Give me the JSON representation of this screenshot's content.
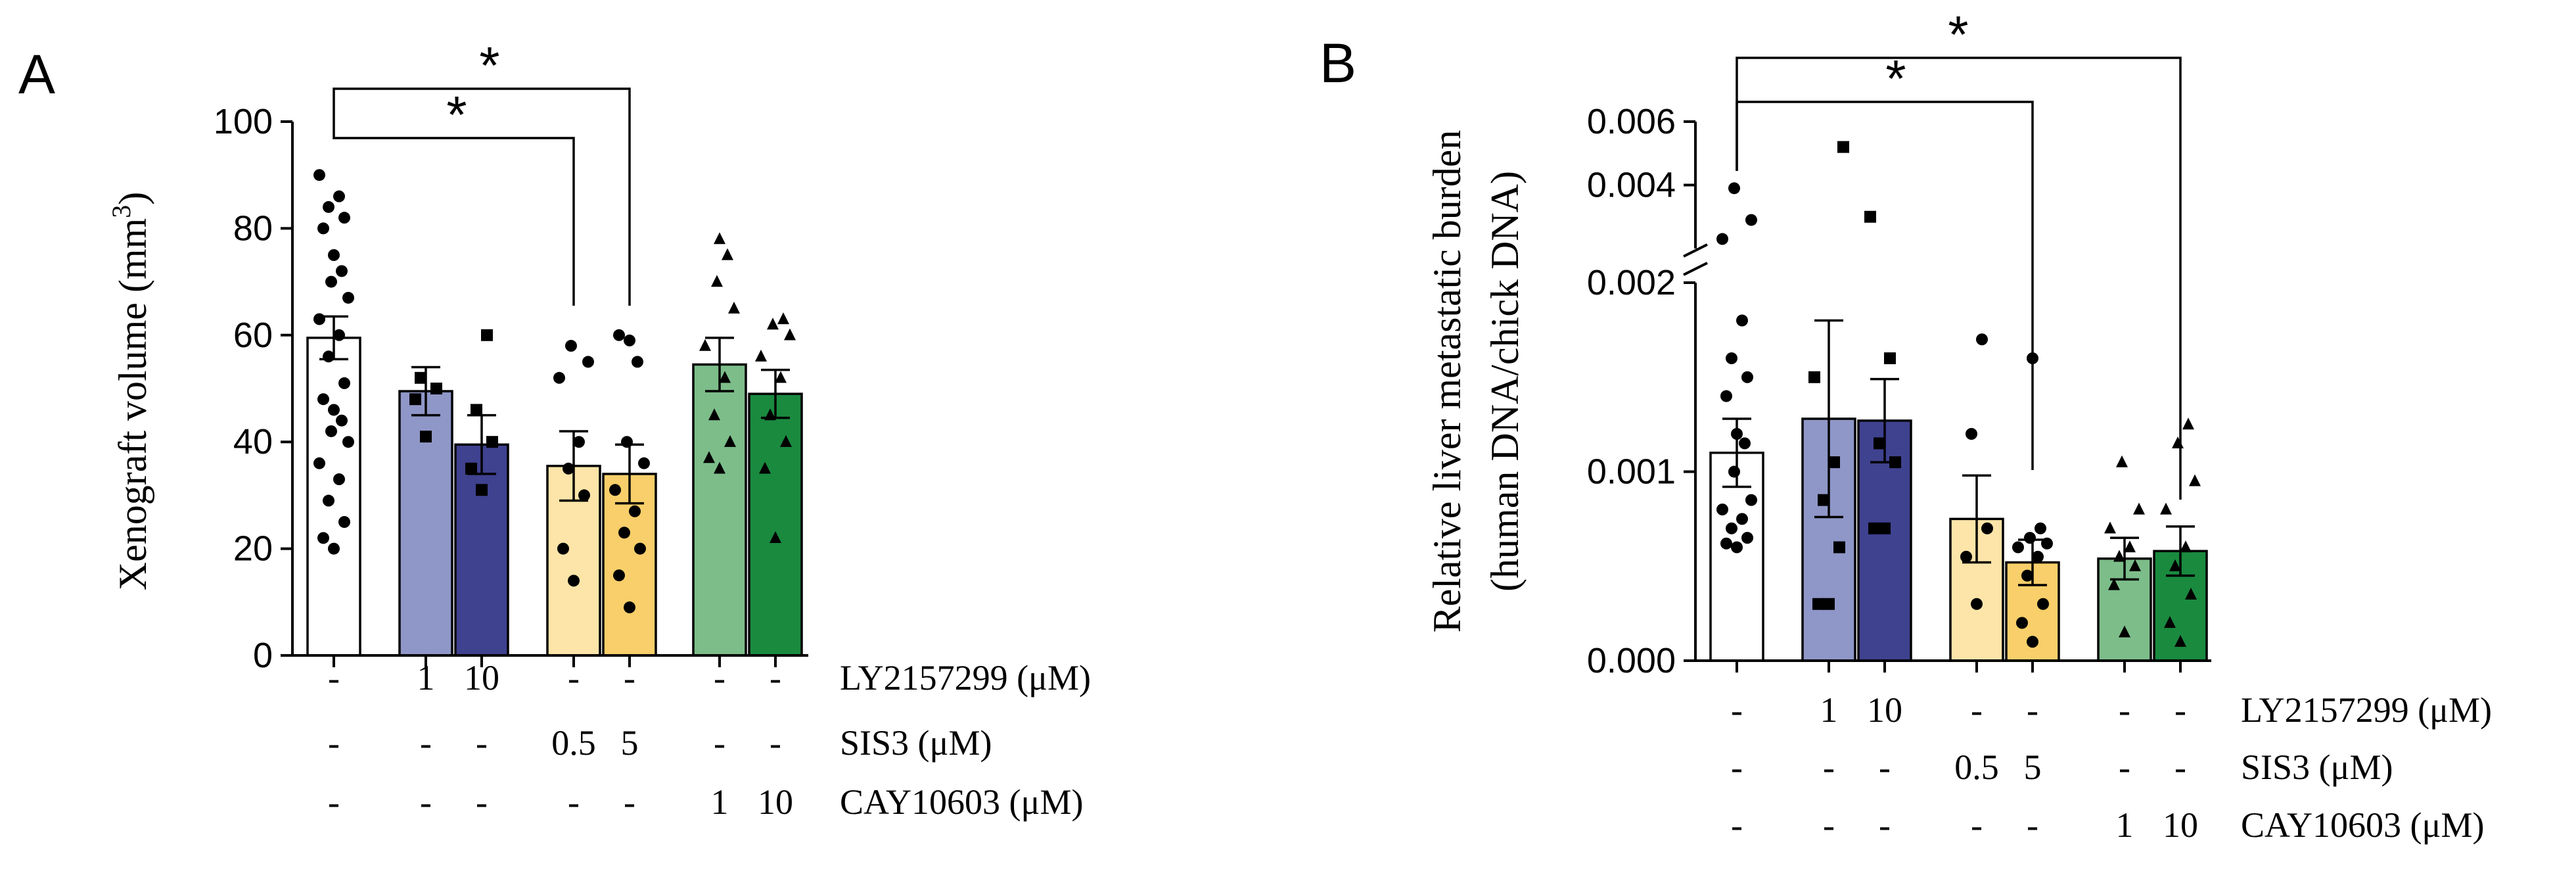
{
  "chart_data": [
    {
      "panel_label": "A",
      "type": "bar",
      "ylabel_main": "Xenograft volume (mm",
      "ylabel_sup": "3",
      "ylabel_end": ")",
      "ylim": [
        0,
        100
      ],
      "yticks": [
        "0",
        "20",
        "40",
        "60",
        "80",
        "100"
      ],
      "sig_marks": [
        "*",
        "*"
      ],
      "bars": [
        {
          "mean": 59.5,
          "sem": 4.0,
          "color": "#ffffff",
          "marker": "circle",
          "points": [
            20,
            22,
            25,
            29,
            33,
            36,
            40,
            42,
            44,
            46,
            48,
            51,
            56,
            60,
            63,
            67,
            70,
            72,
            75,
            80,
            82,
            84,
            86,
            90
          ]
        },
        {
          "mean": 49.5,
          "sem": 4.5,
          "color": "#8f97c8",
          "marker": "square",
          "points": [
            41,
            48,
            50,
            52
          ]
        },
        {
          "mean": 39.5,
          "sem": 5.5,
          "color": "#3f428f",
          "marker": "square",
          "points": [
            31,
            35,
            40,
            46,
            60
          ]
        },
        {
          "mean": 35.5,
          "sem": 6.5,
          "color": "#fde5a9",
          "marker": "circle",
          "points": [
            14,
            20,
            30,
            35,
            40,
            52,
            55,
            58
          ]
        },
        {
          "mean": 34.0,
          "sem": 5.5,
          "color": "#f8cf6a",
          "marker": "circle",
          "points": [
            9,
            15,
            20,
            23,
            27,
            31,
            36,
            40,
            55,
            59,
            60
          ]
        },
        {
          "mean": 54.5,
          "sem": 5.0,
          "color": "#7dbd8a",
          "marker": "triangle",
          "points": [
            35,
            37,
            40,
            45,
            52,
            58,
            65,
            70,
            75,
            78
          ]
        },
        {
          "mean": 49.0,
          "sem": 4.5,
          "color": "#1a8a3f",
          "marker": "triangle",
          "points": [
            22,
            35,
            40,
            45,
            52,
            56,
            60,
            62,
            63
          ]
        }
      ],
      "rows": [
        {
          "label": "LY2157299 (μM)",
          "values": [
            "-",
            "1",
            "10",
            "-",
            "-",
            "-",
            "-"
          ]
        },
        {
          "label": "SIS3 (μM)",
          "values": [
            "-",
            "-",
            "-",
            "0.5",
            "5",
            "-",
            "-"
          ]
        },
        {
          "label": "CAY10603 (μM)",
          "values": [
            "-",
            "-",
            "-",
            "-",
            "-",
            "1",
            "10"
          ]
        }
      ]
    },
    {
      "panel_label": "B",
      "type": "bar",
      "ylabel_line1": "Relative liver metastatic burden",
      "ylabel_line2": "(human DNA/chick DNA)",
      "ylim_lower": [
        0,
        0.002
      ],
      "ylim_upper": [
        0.002,
        0.006
      ],
      "yticks_lower": [
        "0.000",
        "0.001",
        "0.002"
      ],
      "yticks_upper": [
        "0.004",
        "0.006"
      ],
      "sig_marks": [
        "*",
        "*"
      ],
      "bars": [
        {
          "mean": 0.0011,
          "sem": 0.00018,
          "color": "#ffffff",
          "marker": "circle",
          "points": [
            0.0006,
            0.00062,
            0.00065,
            0.0007,
            0.00075,
            0.0008,
            0.00085,
            0.001,
            0.00115,
            0.0012,
            0.0014,
            0.0015,
            0.0016,
            0.0018,
            0.0023,
            0.0029,
            0.0039
          ]
        },
        {
          "mean": 0.00128,
          "sem": 0.00052,
          "color": "#8f97c8",
          "marker": "square",
          "points": [
            0.0003,
            0.0003,
            0.0006,
            0.00085,
            0.00105,
            0.0015,
            0.0052
          ]
        },
        {
          "mean": 0.00127,
          "sem": 0.00022,
          "color": "#3f428f",
          "marker": "square",
          "points": [
            0.0007,
            0.0007,
            0.00105,
            0.00115,
            0.0016,
            0.003
          ]
        },
        {
          "mean": 0.00075,
          "sem": 0.00023,
          "color": "#fde5a9",
          "marker": "circle",
          "points": [
            0.0003,
            0.00055,
            0.0007,
            0.0012,
            0.0017
          ]
        },
        {
          "mean": 0.00052,
          "sem": 0.00012,
          "color": "#f8cf6a",
          "marker": "circle",
          "points": [
            0.0001,
            0.0002,
            0.0003,
            0.00045,
            0.00055,
            0.0006,
            0.00062,
            0.00065,
            0.0007,
            0.0016
          ]
        },
        {
          "mean": 0.00054,
          "sem": 0.00011,
          "color": "#7dbd8a",
          "marker": "triangle",
          "points": [
            0.00015,
            0.0004,
            0.0005,
            0.00055,
            0.0006,
            0.0007,
            0.0008,
            0.00105
          ]
        },
        {
          "mean": 0.00058,
          "sem": 0.00013,
          "color": "#1a8a3f",
          "marker": "triangle",
          "points": [
            0.0001,
            0.0002,
            0.00035,
            0.0005,
            0.0006,
            0.0008,
            0.00095,
            0.00115,
            0.00125
          ]
        }
      ],
      "rows": [
        {
          "label": "LY2157299 (μM)",
          "values": [
            "-",
            "1",
            "10",
            "-",
            "-",
            "-",
            "-"
          ]
        },
        {
          "label": "SIS3 (μM)",
          "values": [
            "-",
            "-",
            "-",
            "0.5",
            "5",
            "-",
            "-"
          ]
        },
        {
          "label": "CAY10603 (μM)",
          "values": [
            "-",
            "-",
            "-",
            "-",
            "-",
            "1",
            "10"
          ]
        }
      ]
    }
  ]
}
